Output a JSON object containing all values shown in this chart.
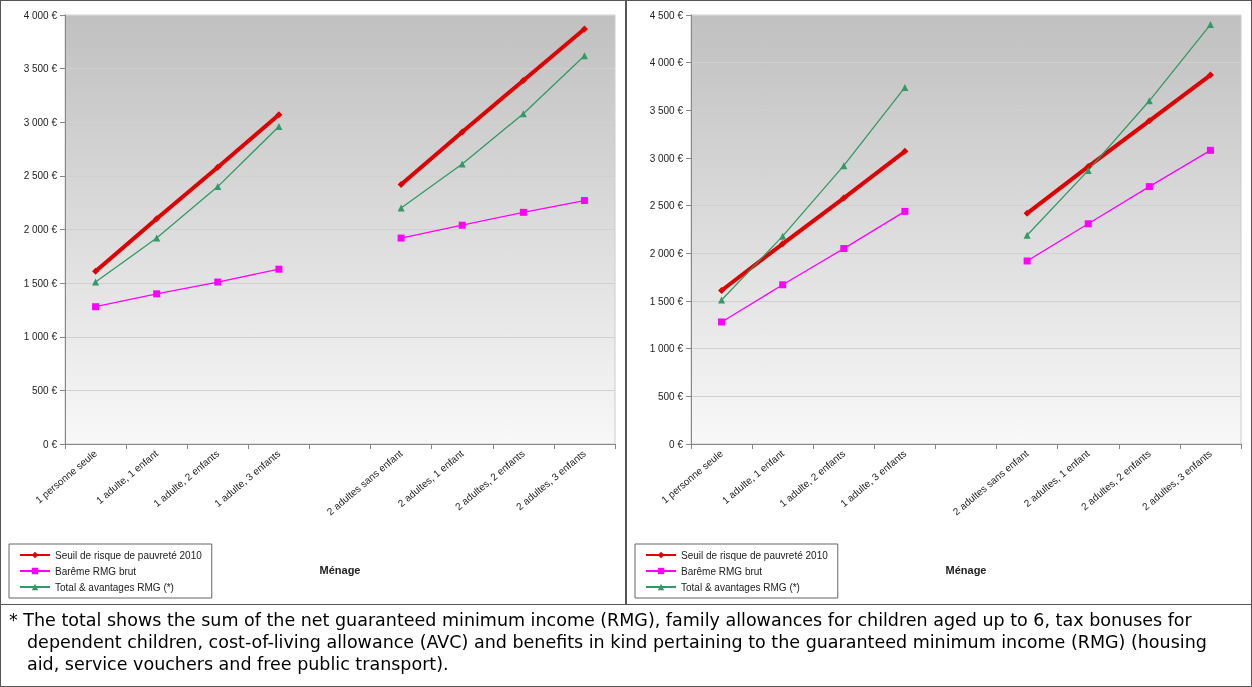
{
  "chart_data": [
    {
      "type": "line",
      "xlabel": "Ménage",
      "categories": [
        "1 personne seule",
        "1 adulte, 1 enfant",
        "1 adulte, 2 enfants",
        "1 adulte, 3 enfants",
        null,
        "2 adultes sans enfant",
        "2 adultes, 1 enfant",
        "2 adultes, 2 enfants",
        "2 adultes, 3 enfants"
      ],
      "series": [
        {
          "name": "Seuil de risque de pauvreté 2010",
          "color": "#e00000",
          "marker": "diamond",
          "values": [
            1610,
            2100,
            2580,
            3070,
            null,
            2420,
            2910,
            3390,
            3870
          ]
        },
        {
          "name": "Barême RMG brut",
          "color": "#ff00ff",
          "marker": "square",
          "values": [
            1280,
            1400,
            1510,
            1630,
            null,
            1920,
            2040,
            2160,
            2270
          ]
        },
        {
          "name": "Total & avantages RMG (*)",
          "color": "#339966",
          "marker": "triangle",
          "values": [
            1510,
            1920,
            2400,
            2960,
            null,
            2200,
            2610,
            3080,
            3620
          ]
        }
      ],
      "ylim": [
        0,
        4000
      ],
      "yticks": [
        {
          "value": 0,
          "label": "0 €"
        },
        {
          "value": 500,
          "label": "500 €"
        },
        {
          "value": 1000,
          "label": "1 000 €"
        },
        {
          "value": 1500,
          "label": "1 500 €"
        },
        {
          "value": 2000,
          "label": "2 000 €"
        },
        {
          "value": 2500,
          "label": "2 500 €"
        },
        {
          "value": 3000,
          "label": "3 000 €"
        },
        {
          "value": 3500,
          "label": "3 500 €"
        },
        {
          "value": 4000,
          "label": "4 000 €"
        }
      ],
      "grid": "y",
      "legend": "bottom left",
      "annotations": [
        "* The total shows the sum of the net guaranteed minimum income (RMG), family allowances for children aged up to 6, tax bonuses for dependent children, cost-of-living allowance (AVC) and benefits in kind pertaining to the guaranteed minimum income (RMG) (housing aid, service vouchers and free public transport)."
      ]
    },
    {
      "type": "line",
      "xlabel": "Ménage",
      "categories": [
        "1 personne seule",
        "1 adulte, 1 enfant",
        "1 adulte, 2 enfants",
        "1 adulte, 3 enfants",
        null,
        "2 adultes sans enfant",
        "2 adultes, 1 enfant",
        "2 adultes, 2 enfants",
        "2 adultes, 3 enfants"
      ],
      "series": [
        {
          "name": "Seuil de risque de pauvreté 2010",
          "color": "#e00000",
          "marker": "diamond",
          "values": [
            1610,
            2100,
            2580,
            3070,
            null,
            2420,
            2910,
            3390,
            3870
          ]
        },
        {
          "name": "Barême RMG brut",
          "color": "#ff00ff",
          "marker": "square",
          "values": [
            1280,
            1670,
            2050,
            2440,
            null,
            1920,
            2310,
            2700,
            3080
          ]
        },
        {
          "name": "Total & avantages RMG (*)",
          "color": "#339966",
          "marker": "triangle",
          "values": [
            1510,
            2180,
            2920,
            3740,
            null,
            2190,
            2870,
            3600,
            4400
          ]
        }
      ],
      "ylim": [
        0,
        4500
      ],
      "yticks": [
        {
          "value": 0,
          "label": "0 €"
        },
        {
          "value": 500,
          "label": "500 €"
        },
        {
          "value": 1000,
          "label": "1 000 €"
        },
        {
          "value": 1500,
          "label": "1 500 €"
        },
        {
          "value": 2000,
          "label": "2 000 €"
        },
        {
          "value": 2500,
          "label": "2 500 €"
        },
        {
          "value": 3000,
          "label": "3 000 €"
        },
        {
          "value": 3500,
          "label": "3 500 €"
        },
        {
          "value": 4000,
          "label": "4 000 €"
        },
        {
          "value": 4500,
          "label": "4 500 €"
        }
      ],
      "grid": "y",
      "legend": "bottom left"
    }
  ]
}
